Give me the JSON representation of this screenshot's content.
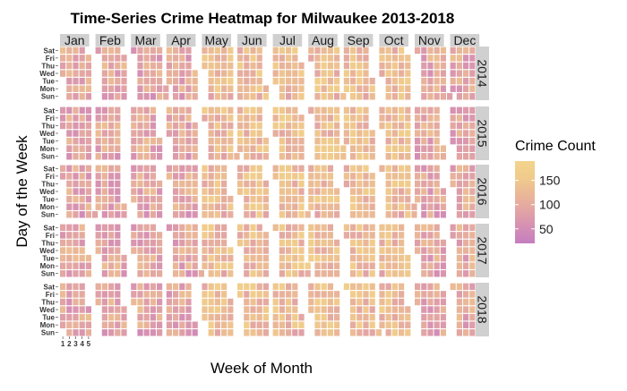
{
  "chart_data": {
    "type": "heatmap",
    "title": "Time-Series Crime Heatmap for Milwaukee 2013-2018",
    "xlabel": "Week of Month",
    "ylabel": "Day of the Week",
    "x_ticks": [
      "1",
      "2",
      "3",
      "4",
      "5"
    ],
    "months": [
      "Jan",
      "Feb",
      "Mar",
      "Apr",
      "May",
      "Jun",
      "Jul",
      "Aug",
      "Sep",
      "Oct",
      "Nov",
      "Dec"
    ],
    "years": [
      "2014",
      "2015",
      "2016",
      "2017",
      "2018"
    ],
    "days": [
      "Sat",
      "Fri",
      "Thu",
      "Wed",
      "Tue",
      "Mon",
      "Sun"
    ],
    "legend": {
      "title": "Crime Count",
      "ticks": [
        50,
        100,
        150
      ],
      "range": [
        20,
        190
      ],
      "colors": [
        "#c47ec0",
        "#d58fb3",
        "#e2a4a4",
        "#eab897",
        "#f0cb8c",
        "#f3d48c"
      ],
      "placement": "right"
    },
    "strip_color": "#d0d0d0"
  }
}
